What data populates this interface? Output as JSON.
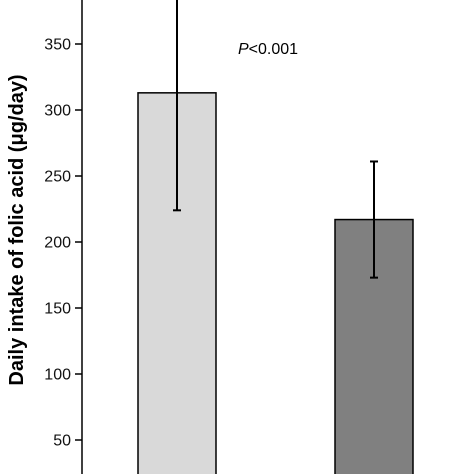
{
  "chart_data": {
    "type": "bar",
    "title": "",
    "xlabel": "",
    "ylabel": "Daily intake of folic acid (μg/day)",
    "ylim": [
      22,
      390
    ],
    "yticks": [
      50,
      100,
      150,
      200,
      250,
      300,
      350
    ],
    "ytick_labels": [
      "50",
      "100",
      "150",
      "200",
      "250",
      "300",
      "350"
    ],
    "categories": [
      "",
      ""
    ],
    "values": [
      313,
      217
    ],
    "error_low": [
      224,
      173
    ],
    "error_high": [
      395,
      261
    ],
    "bar_colors": [
      "#d9d9d9",
      "#808080"
    ],
    "annotation": {
      "italic": "P",
      "rest": "<0.001"
    },
    "grid": false,
    "legend": "none"
  }
}
